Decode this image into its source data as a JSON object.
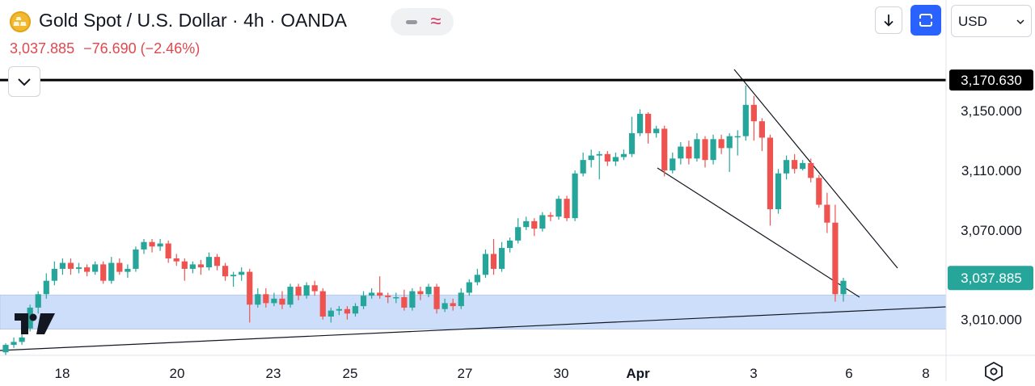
{
  "header": {
    "title": "Gold Spot / U.S. Dollar · 4h · OANDA",
    "last_price": "3,037.885",
    "change": "−76.690 (−2.46%)",
    "currency": "USD",
    "logo_icon": "gold-bars-icon"
  },
  "colors": {
    "up": "#26a69a",
    "down": "#ef5350",
    "accent": "#2962ff",
    "zone": "#c8dbfa",
    "price_badge": "#26a69a"
  },
  "chart_data": {
    "type": "candlestick",
    "symbol": "XAUUSD",
    "interval": "4h",
    "ylim": [
      2986,
      3181
    ],
    "y_ticks": [
      3150,
      3110,
      3070,
      3010
    ],
    "y_tick_labels": [
      "3,150.000",
      "3,110.000",
      "3,070.000",
      "3,010.000"
    ],
    "x_ticks": [
      "18",
      "20",
      "23",
      "25",
      "27",
      "30",
      "Apr",
      "3",
      "6",
      "8"
    ],
    "last_price": 3037.885,
    "last_price_label": "3,037.885",
    "high_line": 3170.63,
    "high_line_label": "3,170.630",
    "support_zone": [
      3003.5,
      3026.5
    ],
    "candles": [
      [
        2988,
        2993,
        2986,
        2994
      ],
      [
        2993,
        2995,
        2991,
        2998
      ],
      [
        2995,
        2998,
        2993,
        3000
      ],
      [
        3004,
        3018,
        3002,
        3020
      ],
      [
        3018,
        3027,
        3014,
        3029
      ],
      [
        3027,
        3036,
        3024,
        3041
      ],
      [
        3036,
        3044,
        3033,
        3049
      ],
      [
        3044,
        3048,
        3040,
        3051
      ],
      [
        3048,
        3044,
        3040,
        3051
      ],
      [
        3044,
        3045,
        3041,
        3048
      ],
      [
        3045,
        3042,
        3039,
        3047
      ],
      [
        3042,
        3047,
        3040,
        3049
      ],
      [
        3047,
        3036,
        3034,
        3049
      ],
      [
        3036,
        3048,
        3034,
        3052
      ],
      [
        3048,
        3042,
        3040,
        3051
      ],
      [
        3042,
        3044,
        3038,
        3047
      ],
      [
        3044,
        3057,
        3042,
        3059
      ],
      [
        3057,
        3062,
        3054,
        3064
      ],
      [
        3062,
        3059,
        3055,
        3064
      ],
      [
        3059,
        3061,
        3056,
        3064
      ],
      [
        3061,
        3051,
        3048,
        3063
      ],
      [
        3051,
        3049,
        3046,
        3054
      ],
      [
        3049,
        3044,
        3036,
        3051
      ],
      [
        3044,
        3047,
        3041,
        3049
      ],
      [
        3047,
        3045,
        3040,
        3050
      ],
      [
        3045,
        3052,
        3043,
        3055
      ],
      [
        3052,
        3046,
        3043,
        3054
      ],
      [
        3046,
        3039,
        3036,
        3048
      ],
      [
        3039,
        3040,
        3032,
        3042
      ],
      [
        3040,
        3042,
        3036,
        3045
      ],
      [
        3042,
        3020,
        3008,
        3044
      ],
      [
        3020,
        3027,
        3018,
        3031
      ],
      [
        3027,
        3021,
        3018,
        3031
      ],
      [
        3021,
        3024,
        3019,
        3028
      ],
      [
        3024,
        3020,
        3017,
        3029
      ],
      [
        3020,
        3032,
        3018,
        3034
      ],
      [
        3032,
        3026,
        3023,
        3034
      ],
      [
        3026,
        3033,
        3024,
        3035
      ],
      [
        3033,
        3029,
        3026,
        3036
      ],
      [
        3029,
        3012,
        3010,
        3031
      ],
      [
        3012,
        3016,
        3008,
        3018
      ],
      [
        3016,
        3017,
        3013,
        3019
      ],
      [
        3017,
        3014,
        3010,
        3019
      ],
      [
        3014,
        3019,
        3012,
        3021
      ],
      [
        3019,
        3026,
        3017,
        3029
      ],
      [
        3026,
        3028,
        3024,
        3031
      ],
      [
        3028,
        3026,
        3024,
        3039
      ],
      [
        3026,
        3025,
        3021,
        3028
      ],
      [
        3025,
        3025,
        3021,
        3028
      ],
      [
        3025,
        3018,
        3016,
        3030
      ],
      [
        3018,
        3029,
        3016,
        3031
      ],
      [
        3029,
        3027,
        3023,
        3032
      ],
      [
        3027,
        3032,
        3025,
        3034
      ],
      [
        3032,
        3017,
        3014,
        3034
      ],
      [
        3017,
        3021,
        3015,
        3024
      ],
      [
        3021,
        3019,
        3016,
        3024
      ],
      [
        3019,
        3028,
        3017,
        3031
      ],
      [
        3028,
        3035,
        3026,
        3037
      ],
      [
        3035,
        3040,
        3033,
        3044
      ],
      [
        3040,
        3054,
        3038,
        3057
      ],
      [
        3054,
        3044,
        3040,
        3064
      ],
      [
        3044,
        3058,
        3042,
        3062
      ],
      [
        3058,
        3063,
        3055,
        3065
      ],
      [
        3063,
        3072,
        3061,
        3078
      ],
      [
        3072,
        3076,
        3070,
        3079
      ],
      [
        3076,
        3071,
        3066,
        3078
      ],
      [
        3071,
        3080,
        3069,
        3082
      ],
      [
        3080,
        3079,
        3076,
        3082
      ],
      [
        3079,
        3091,
        3077,
        3093
      ],
      [
        3091,
        3078,
        3076,
        3093
      ],
      [
        3078,
        3108,
        3076,
        3110
      ],
      [
        3108,
        3117,
        3106,
        3122
      ],
      [
        3117,
        3120,
        3112,
        3124
      ],
      [
        3120,
        3121,
        3104,
        3123
      ],
      [
        3121,
        3116,
        3113,
        3123
      ],
      [
        3116,
        3119,
        3113,
        3122
      ],
      [
        3119,
        3121,
        3117,
        3124
      ],
      [
        3121,
        3135,
        3119,
        3146
      ],
      [
        3135,
        3148,
        3133,
        3151
      ],
      [
        3148,
        3135,
        3128,
        3149
      ],
      [
        3135,
        3138,
        3132,
        3140
      ],
      [
        3138,
        3110,
        3106,
        3140
      ],
      [
        3110,
        3118,
        3108,
        3122
      ],
      [
        3118,
        3126,
        3114,
        3129
      ],
      [
        3126,
        3118,
        3114,
        3130
      ],
      [
        3118,
        3131,
        3116,
        3135
      ],
      [
        3131,
        3117,
        3112,
        3133
      ],
      [
        3117,
        3131,
        3114,
        3134
      ],
      [
        3131,
        3125,
        3121,
        3134
      ],
      [
        3125,
        3133,
        3109,
        3135
      ],
      [
        3133,
        3133,
        3120,
        3137
      ],
      [
        3133,
        3154,
        3130,
        3167
      ],
      [
        3154,
        3143,
        3130,
        3160
      ],
      [
        3143,
        3132,
        3123,
        3145
      ],
      [
        3132,
        3084,
        3073,
        3134
      ],
      [
        3084,
        3108,
        3081,
        3111
      ],
      [
        3108,
        3117,
        3104,
        3120
      ],
      [
        3117,
        3111,
        3108,
        3121
      ],
      [
        3111,
        3115,
        3110,
        3117
      ],
      [
        3115,
        3105,
        3102,
        3118
      ],
      [
        3105,
        3087,
        3085,
        3107
      ],
      [
        3087,
        3075,
        3068,
        3095
      ],
      [
        3075,
        3027,
        3022,
        3087
      ],
      [
        3027,
        3036,
        3022,
        3038
      ]
    ]
  },
  "settings_icon": "gear-hexagon-icon",
  "watermark_icon": "tradingview-logo-icon"
}
